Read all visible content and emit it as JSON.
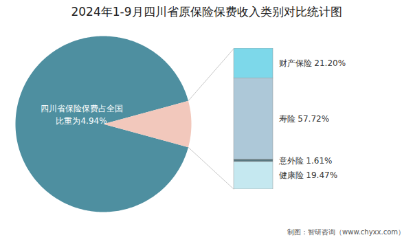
{
  "chart_data": [
    {
      "type": "pie",
      "title": "2024年1-9月四川省原保险保费收入类别对比统计图",
      "values": [
        91.5,
        8.5
      ],
      "colors": [
        "#4e8fa0",
        "#f2c8bc"
      ],
      "annotations": [
        "四川省保险保费占全国\n比重为4.94%"
      ]
    },
    {
      "type": "bar",
      "stacked": true,
      "categories": [
        "财产保险",
        "寿险",
        "意外险",
        "健康险"
      ],
      "values": [
        21.2,
        57.72,
        1.61,
        19.47
      ],
      "value_labels": [
        "财产保险 21.20%",
        "寿险 57.72%",
        "意外险 1.61%",
        "健康险 19.47%"
      ],
      "data_labels": true,
      "colors": [
        "#7dd8ea",
        "#adc8d8",
        "#5a7880",
        "#c5e8f0"
      ],
      "ylim": [
        0,
        100
      ],
      "tick_labels": false,
      "annotations": [
        "制图：智研咨询（www.chyxx.com）"
      ]
    }
  ]
}
